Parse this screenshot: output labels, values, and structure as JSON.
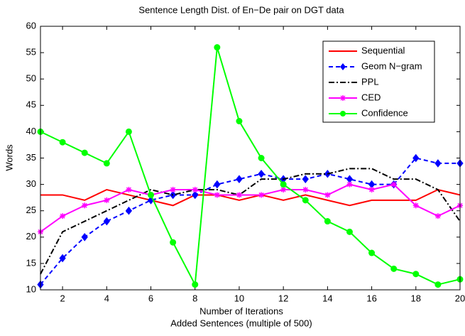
{
  "chart_data": {
    "type": "line",
    "title": "Sentence Length Dist. of En−De pair on DGT data",
    "xlabel": "Number of Iterations",
    "xlabel2": "Added Sentences (multiple of 500)",
    "ylabel": "Words",
    "x": [
      1,
      2,
      3,
      4,
      5,
      6,
      7,
      8,
      9,
      10,
      11,
      12,
      13,
      14,
      15,
      16,
      17,
      18,
      19,
      20
    ],
    "xlim": [
      1,
      20
    ],
    "xticks": [
      2,
      4,
      6,
      8,
      10,
      12,
      14,
      16,
      18,
      20
    ],
    "ylim": [
      10,
      60
    ],
    "yticks": [
      10,
      15,
      20,
      25,
      30,
      35,
      40,
      45,
      50,
      55,
      60
    ],
    "legend": "upper right",
    "series": [
      {
        "name": "Sequential",
        "color": "#ff0000",
        "line_style": "solid",
        "marker": "none",
        "values": [
          28,
          28,
          27,
          29,
          28,
          27,
          26,
          28,
          28,
          27,
          28,
          27,
          28,
          27,
          26,
          27,
          27,
          27,
          29,
          28
        ]
      },
      {
        "name": "Geom N−gram",
        "color": "#0000ff",
        "line_style": "dashed",
        "marker": "diamond",
        "values": [
          11,
          16,
          20,
          23,
          25,
          27,
          28,
          28,
          30,
          31,
          32,
          31,
          31,
          32,
          31,
          30,
          30,
          35,
          34,
          34
        ]
      },
      {
        "name": "PPL",
        "color": "#000000",
        "line_style": "dashdot",
        "marker": "none",
        "values": [
          13,
          21,
          23,
          25,
          27,
          29,
          28,
          29,
          29,
          28,
          31,
          31,
          32,
          32,
          33,
          33,
          31,
          31,
          29,
          23
        ]
      },
      {
        "name": "CED",
        "color": "#ff00ff",
        "line_style": "solid",
        "marker": "star",
        "values": [
          21,
          24,
          26,
          27,
          29,
          28,
          29,
          29,
          28,
          28,
          28,
          29,
          29,
          28,
          30,
          29,
          30,
          26,
          24,
          26
        ]
      },
      {
        "name": "Confidence",
        "color": "#00ff00",
        "line_style": "solid",
        "marker": "circle",
        "values": [
          40,
          38,
          36,
          34,
          40,
          28,
          19,
          11,
          56,
          42,
          35,
          30,
          27,
          23,
          21,
          17,
          14,
          13,
          11,
          12
        ]
      }
    ]
  }
}
